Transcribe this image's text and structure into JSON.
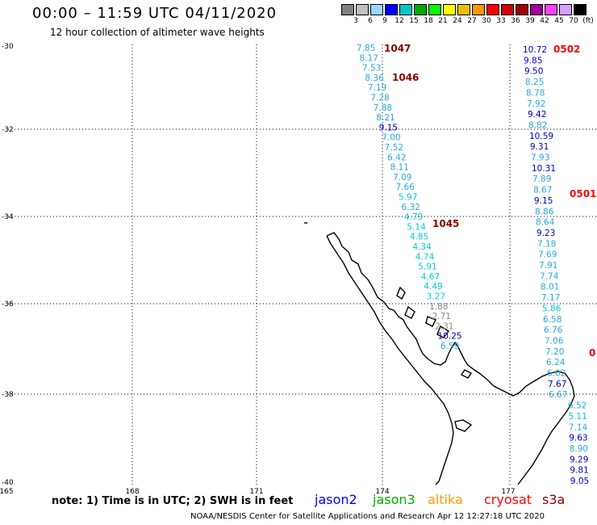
{
  "title": "00:00 – 11:59 UTC 04/11/2020",
  "subtitle": "12 hour collection of altimeter wave heights",
  "color_scale": {
    "ticks": [
      "3",
      "6",
      "9",
      "12",
      "15",
      "18",
      "21",
      "24",
      "27",
      "30",
      "33",
      "36",
      "39",
      "42",
      "45",
      "70",
      "(ft)"
    ],
    "colors": [
      "#808080",
      "#c0c0c0",
      "#9ad7ff",
      "#0000ff",
      "#00c8c8",
      "#00aa00",
      "#00ff00",
      "#ffff00",
      "#f0c000",
      "#ff9900",
      "#ff0000",
      "#d00000",
      "#a00000",
      "#a000a0",
      "#ff40ff",
      "#d8a0ff",
      "#000000"
    ]
  },
  "axes": {
    "lat_labels": [
      "-30",
      "-32",
      "-34",
      "-36",
      "-38",
      "-40"
    ],
    "lon_labels": [
      "165",
      "168",
      "171",
      "174",
      "177"
    ]
  },
  "tracks": [
    {
      "name": "track-west",
      "times": [
        {
          "label": "1047",
          "color": "#8b0000"
        },
        {
          "label": "1046",
          "color": "#8b0000"
        },
        {
          "label": "1045",
          "color": "#8b0000"
        }
      ],
      "readings": [
        {
          "v": "7.85",
          "c": "#2aa8d8"
        },
        {
          "v": "8.17",
          "c": "#2aa8d8"
        },
        {
          "v": "7.53",
          "c": "#2aa8d8"
        },
        {
          "v": "8.36",
          "c": "#2aa8d8"
        },
        {
          "v": "7.19",
          "c": "#2aa8d8"
        },
        {
          "v": "7.28",
          "c": "#2aa8d8"
        },
        {
          "v": "7.88",
          "c": "#2aa8d8"
        },
        {
          "v": "8.21",
          "c": "#2aa8d8"
        },
        {
          "v": "9.15",
          "c": "#0000cc"
        },
        {
          "v": "7.00",
          "c": "#2aa8d8"
        },
        {
          "v": "7.52",
          "c": "#2aa8d8"
        },
        {
          "v": "6.42",
          "c": "#2aa8d8"
        },
        {
          "v": "8.11",
          "c": "#2aa8d8"
        },
        {
          "v": "7.09",
          "c": "#2aa8d8"
        },
        {
          "v": "7.66",
          "c": "#2aa8d8"
        },
        {
          "v": "5.97",
          "c": "#00cccc"
        },
        {
          "v": "6.32",
          "c": "#2aa8d8"
        },
        {
          "v": "4.79",
          "c": "#00cccc"
        },
        {
          "v": "5.14",
          "c": "#00cccc"
        },
        {
          "v": "4.85",
          "c": "#00cccc"
        },
        {
          "v": "4.34",
          "c": "#00cccc"
        },
        {
          "v": "4.74",
          "c": "#00cccc"
        },
        {
          "v": "5.91",
          "c": "#00cccc"
        },
        {
          "v": "4.67",
          "c": "#00cccc"
        },
        {
          "v": "4.49",
          "c": "#00cccc"
        },
        {
          "v": "3.27",
          "c": "#00cccc"
        },
        {
          "v": "1.88",
          "c": "#888888"
        },
        {
          "v": "2.71",
          "c": "#888888"
        },
        {
          "v": "2.31",
          "c": "#888888"
        },
        {
          "v": "10.25",
          "c": "#0000cc"
        },
        {
          "v": "6.59",
          "c": "#2aa8d8"
        }
      ]
    },
    {
      "name": "track-east",
      "times": [
        {
          "label": "0502",
          "color": "#ff0000"
        },
        {
          "label": "0501",
          "color": "#ff0000"
        },
        {
          "label": "0",
          "color": "#ff0000"
        }
      ],
      "readings": [
        {
          "v": "10.72",
          "c": "#0000cc"
        },
        {
          "v": "9.85",
          "c": "#0000cc"
        },
        {
          "v": "9.50",
          "c": "#0000cc"
        },
        {
          "v": "8.25",
          "c": "#2aa8d8"
        },
        {
          "v": "8.78",
          "c": "#2aa8d8"
        },
        {
          "v": "7.92",
          "c": "#2aa8d8"
        },
        {
          "v": "9.42",
          "c": "#0000cc"
        },
        {
          "v": "8.82",
          "c": "#2aa8d8"
        },
        {
          "v": "10.59",
          "c": "#0000cc"
        },
        {
          "v": "9.31",
          "c": "#0000cc"
        },
        {
          "v": "7.93",
          "c": "#2aa8d8"
        },
        {
          "v": "10.31",
          "c": "#0000cc"
        },
        {
          "v": "7.89",
          "c": "#2aa8d8"
        },
        {
          "v": "8.67",
          "c": "#2aa8d8"
        },
        {
          "v": "9.15",
          "c": "#0000cc"
        },
        {
          "v": "8.86",
          "c": "#2aa8d8"
        },
        {
          "v": "8.64",
          "c": "#2aa8d8"
        },
        {
          "v": "9.23",
          "c": "#0000cc"
        },
        {
          "v": "7.18",
          "c": "#2aa8d8"
        },
        {
          "v": "7.69",
          "c": "#2aa8d8"
        },
        {
          "v": "7.91",
          "c": "#2aa8d8"
        },
        {
          "v": "7.74",
          "c": "#2aa8d8"
        },
        {
          "v": "8.01",
          "c": "#2aa8d8"
        },
        {
          "v": "7.17",
          "c": "#2aa8d8"
        },
        {
          "v": "5.86",
          "c": "#00cccc"
        },
        {
          "v": "6.58",
          "c": "#2aa8d8"
        },
        {
          "v": "6.76",
          "c": "#2aa8d8"
        },
        {
          "v": "7.06",
          "c": "#2aa8d8"
        },
        {
          "v": "7.20",
          "c": "#2aa8d8"
        },
        {
          "v": "6.24",
          "c": "#2aa8d8"
        },
        {
          "v": "6.02",
          "c": "#2aa8d8"
        },
        {
          "v": "7.67",
          "c": "#0000cc"
        },
        {
          "v": "6.67",
          "c": "#2aa8d8"
        },
        {
          "v": "6.52",
          "c": "#2aa8d8"
        },
        {
          "v": "5.11",
          "c": "#00cccc"
        },
        {
          "v": "7.14",
          "c": "#2aa8d8"
        },
        {
          "v": "9.63",
          "c": "#0000cc"
        },
        {
          "v": "8.90",
          "c": "#2aa8d8"
        },
        {
          "v": "9.29",
          "c": "#0000cc"
        },
        {
          "v": "9.81",
          "c": "#0000cc"
        },
        {
          "v": "9.05",
          "c": "#0000cc"
        }
      ]
    }
  ],
  "note": "note: 1) Time is in UTC; 2) SWH is in feet",
  "satellites": [
    {
      "name": "jason2",
      "color": "#0000ff"
    },
    {
      "name": "jason3",
      "color": "#00aa00"
    },
    {
      "name": "altika",
      "color": "#ff9900"
    },
    {
      "name": "cryosat",
      "color": "#ff0000"
    },
    {
      "name": "s3a",
      "color": "#8b0000"
    }
  ],
  "footer": "NOAA/NESDIS Center for Satellite Applications and Research    Apr 12 12:27:18 UTC 2020"
}
